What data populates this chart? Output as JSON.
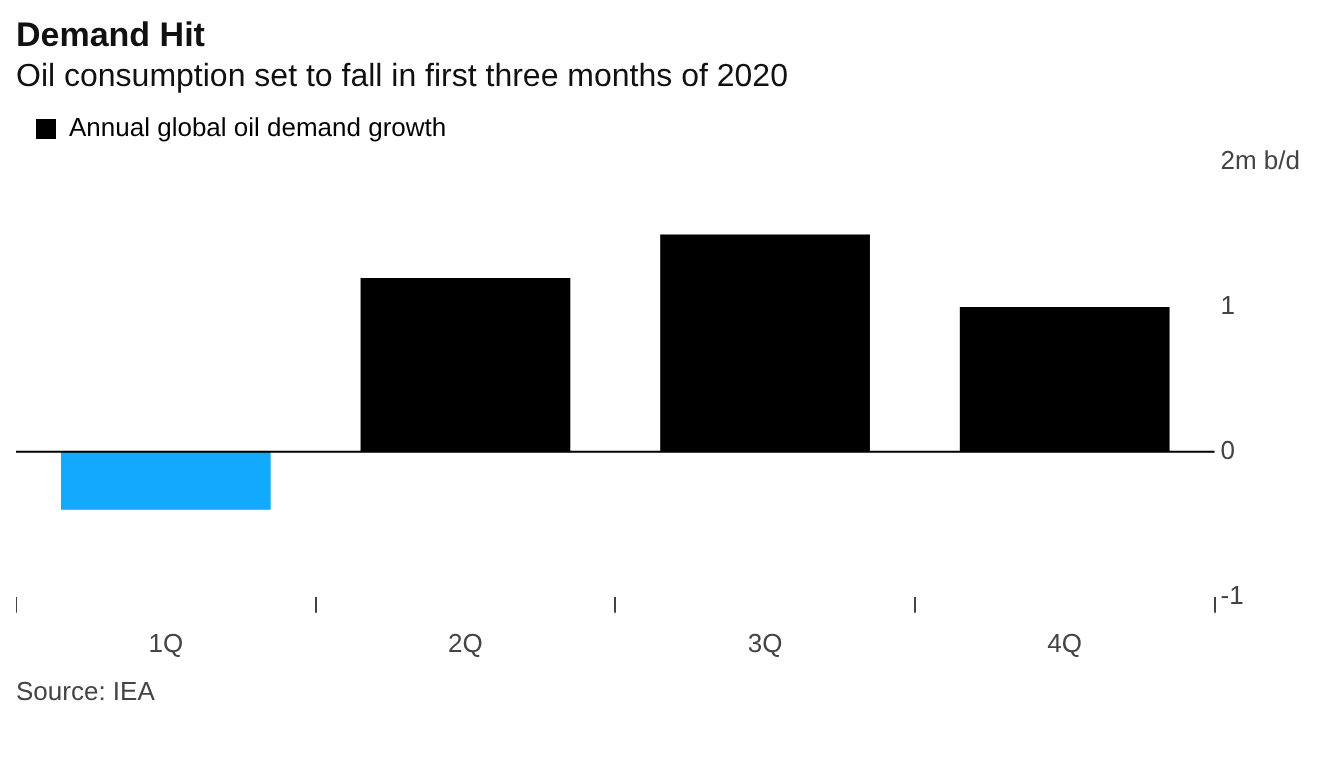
{
  "chart_data": {
    "type": "bar",
    "title": "Demand Hit",
    "subtitle": "Oil consumption set to fall in first three months of 2020",
    "categories": [
      "1Q",
      "2Q",
      "3Q",
      "4Q"
    ],
    "series": [
      {
        "name": "Annual global oil demand growth",
        "color": "#000000",
        "colors": [
          "#12aaff",
          "#000000",
          "#000000",
          "#000000"
        ],
        "values": [
          -0.4,
          1.2,
          1.5,
          1.0
        ]
      }
    ],
    "ylim": [
      -1,
      2
    ],
    "yticks": [
      -1,
      0,
      1,
      {
        "value": 2,
        "label": "2m b/d"
      }
    ],
    "grid": false,
    "ref_lines": [
      {
        "axis": "y",
        "value": 0,
        "color": "#000000"
      }
    ],
    "legend": "top left",
    "annotations": [
      "Source: IEA"
    ]
  }
}
